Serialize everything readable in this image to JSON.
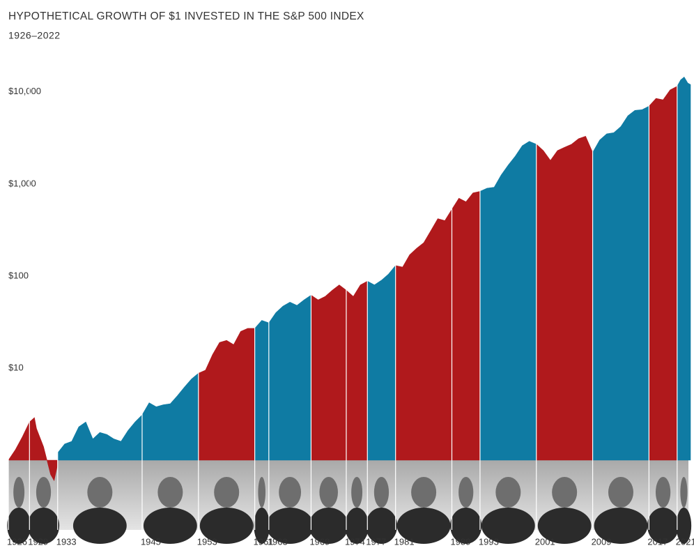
{
  "chart_data": {
    "type": "area",
    "title": "HYPOTHETICAL GROWTH OF $1 INVESTED IN THE S&P 500 INDEX",
    "subtitle": "1926–2022",
    "log_y": true,
    "grid": false,
    "xlim": [
      1926,
      2022.9
    ],
    "ylim": [
      1,
      20000
    ],
    "yticks": [
      {
        "value": 10,
        "label": "$10"
      },
      {
        "value": 100,
        "label": "$100"
      },
      {
        "value": 1000,
        "label": "$1,000"
      },
      {
        "value": 10000,
        "label": "$10,000"
      }
    ],
    "xticks": [
      1926,
      1929,
      1933,
      1945,
      1953,
      1961,
      1963,
      1969,
      1974,
      1977,
      1981,
      1989,
      1993,
      2001,
      2009,
      2017,
      2021
    ],
    "series": [
      {
        "color": "#b0191c",
        "x": [
          1926,
          1927,
          1928,
          1929
        ],
        "values": [
          1.0,
          1.3,
          1.8,
          2.6
        ]
      },
      {
        "color": "#b0191c",
        "x": [
          1929,
          1929.7,
          1930,
          1931,
          1932,
          1932.5,
          1933
        ],
        "values": [
          2.6,
          2.9,
          2.2,
          1.4,
          0.7,
          0.6,
          0.9
        ]
      },
      {
        "color": "#0f7ba3",
        "x": [
          1933,
          1934,
          1935,
          1936,
          1937,
          1938,
          1939,
          1940,
          1941,
          1942,
          1943,
          1944,
          1945
        ],
        "values": [
          1.2,
          1.5,
          1.6,
          2.3,
          2.6,
          1.7,
          2.0,
          1.9,
          1.7,
          1.6,
          2.1,
          2.6,
          3.1
        ]
      },
      {
        "color": "#0f7ba3",
        "x": [
          1945,
          1946,
          1947,
          1948,
          1949,
          1950,
          1951,
          1952,
          1953
        ],
        "values": [
          3.1,
          4.2,
          3.8,
          4.0,
          4.1,
          5.0,
          6.2,
          7.6,
          8.8
        ]
      },
      {
        "color": "#b0191c",
        "x": [
          1953,
          1954,
          1955,
          1956,
          1957,
          1958,
          1959,
          1960,
          1961
        ],
        "values": [
          8.8,
          9.5,
          14,
          19,
          20,
          18,
          25,
          27,
          27
        ]
      },
      {
        "color": "#0f7ba3",
        "x": [
          1961,
          1962,
          1963
        ],
        "values": [
          27,
          33,
          31
        ]
      },
      {
        "color": "#0f7ba3",
        "x": [
          1963,
          1964,
          1965,
          1966,
          1967,
          1968,
          1969
        ],
        "values": [
          31,
          40,
          47,
          52,
          48,
          55,
          62
        ]
      },
      {
        "color": "#b0191c",
        "x": [
          1969,
          1970,
          1971,
          1972,
          1973,
          1974
        ],
        "values": [
          62,
          55,
          60,
          70,
          80,
          70
        ]
      },
      {
        "color": "#b0191c",
        "x": [
          1974,
          1975,
          1976,
          1977
        ],
        "values": [
          70,
          60,
          80,
          88
        ]
      },
      {
        "color": "#0f7ba3",
        "x": [
          1977,
          1978,
          1979,
          1980,
          1981
        ],
        "values": [
          88,
          80,
          90,
          105,
          130
        ]
      },
      {
        "color": "#b0191c",
        "x": [
          1981,
          1982,
          1983,
          1984,
          1985,
          1986,
          1987,
          1988,
          1989
        ],
        "values": [
          130,
          125,
          170,
          200,
          230,
          310,
          420,
          400,
          530
        ]
      },
      {
        "color": "#b0191c",
        "x": [
          1989,
          1990,
          1991,
          1992,
          1993
        ],
        "values": [
          530,
          700,
          640,
          800,
          830
        ]
      },
      {
        "color": "#0f7ba3",
        "x": [
          1993,
          1994,
          1995,
          1996,
          1997,
          1998,
          1999,
          2000,
          2001
        ],
        "values": [
          830,
          900,
          920,
          1250,
          1600,
          2000,
          2600,
          2900,
          2700
        ]
      },
      {
        "color": "#b0191c",
        "x": [
          2001,
          2002,
          2003,
          2004,
          2005,
          2006,
          2007,
          2008,
          2009
        ],
        "values": [
          2700,
          2300,
          1800,
          2300,
          2500,
          2700,
          3100,
          3300,
          2200
        ]
      },
      {
        "color": "#0f7ba3",
        "x": [
          2009,
          2010,
          2011,
          2012,
          2013,
          2014,
          2015,
          2016,
          2017
        ],
        "values": [
          2200,
          3000,
          3500,
          3600,
          4200,
          5500,
          6300,
          6400,
          7000
        ]
      },
      {
        "color": "#b0191c",
        "x": [
          2017,
          2018,
          2019,
          2020,
          2021
        ],
        "values": [
          7000,
          8500,
          8200,
          10500,
          11500
        ]
      },
      {
        "color": "#0f7ba3",
        "x": [
          2021,
          2021.5,
          2022,
          2022.5,
          2022.9
        ],
        "values": [
          11500,
          13500,
          14500,
          12500,
          12000
        ]
      }
    ]
  }
}
